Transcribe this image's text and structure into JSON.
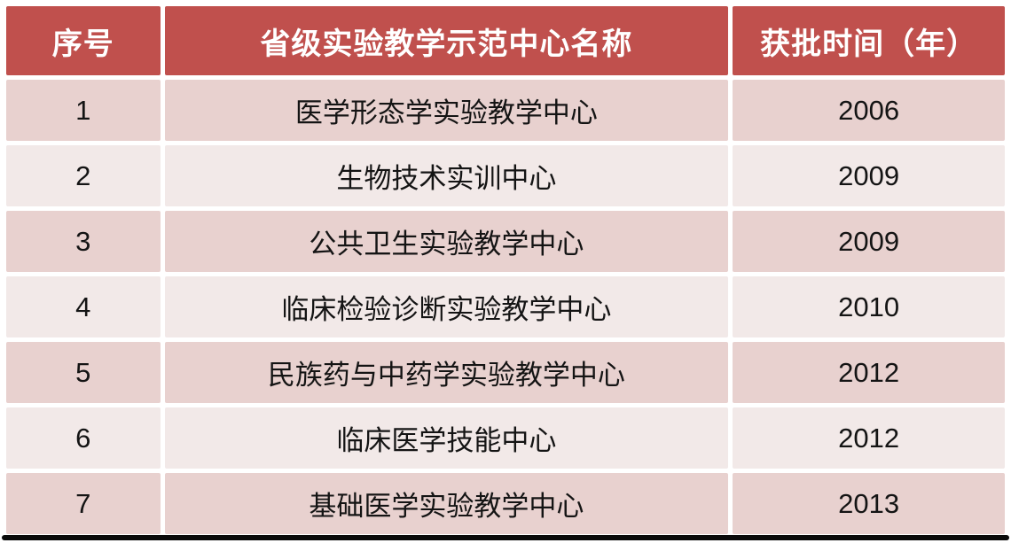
{
  "page": {
    "background": "#FFFFFF"
  },
  "table": {
    "headers": {
      "no": "序号",
      "name": "省级实验教学示范中心名称",
      "year": "获批时间（年）"
    },
    "rows": [
      {
        "no": "1",
        "name": "医学形态学实验教学中心",
        "year": "2006"
      },
      {
        "no": "2",
        "name": "生物技术实训中心",
        "year": "2009"
      },
      {
        "no": "3",
        "name": "公共卫生实验教学中心",
        "year": "2009"
      },
      {
        "no": "4",
        "name": "临床检验诊断实验教学中心",
        "year": "2010"
      },
      {
        "no": "5",
        "name": "民族药与中药学实验教学中心",
        "year": "2012"
      },
      {
        "no": "6",
        "name": "临床医学技能中心",
        "year": "2012"
      },
      {
        "no": "7",
        "name": "基础医学实验教学中心",
        "year": "2013"
      }
    ],
    "colors": {
      "header_bg": "#C0504D",
      "header_text": "#FFFFFF",
      "band_dark_bg": "#E8D1CF",
      "band_light_bg": "#F2E9E8",
      "body_text": "#141414",
      "cell_gap": "#FFFFFF",
      "bottom_rule": "#0A0A0A"
    }
  },
  "chart_data": {
    "type": "table",
    "title": "",
    "columns": [
      "序号",
      "省级实验教学示范中心名称",
      "获批时间（年）"
    ],
    "rows": [
      [
        "1",
        "医学形态学实验教学中心",
        "2006"
      ],
      [
        "2",
        "生物技术实训中心",
        "2009"
      ],
      [
        "3",
        "公共卫生实验教学中心",
        "2009"
      ],
      [
        "4",
        "临床检验诊断实验教学中心",
        "2010"
      ],
      [
        "5",
        "民族药与中药学实验教学中心",
        "2012"
      ],
      [
        "6",
        "临床医学技能中心",
        "2012"
      ],
      [
        "7",
        "基础医学实验教学中心",
        "2013"
      ]
    ],
    "layout_hints": {
      "header_style": "solid red banner, white bold text",
      "row_banding": [
        "dark",
        "light",
        "dark",
        "light",
        "dark",
        "light",
        "dark"
      ],
      "alignment": "center"
    }
  }
}
